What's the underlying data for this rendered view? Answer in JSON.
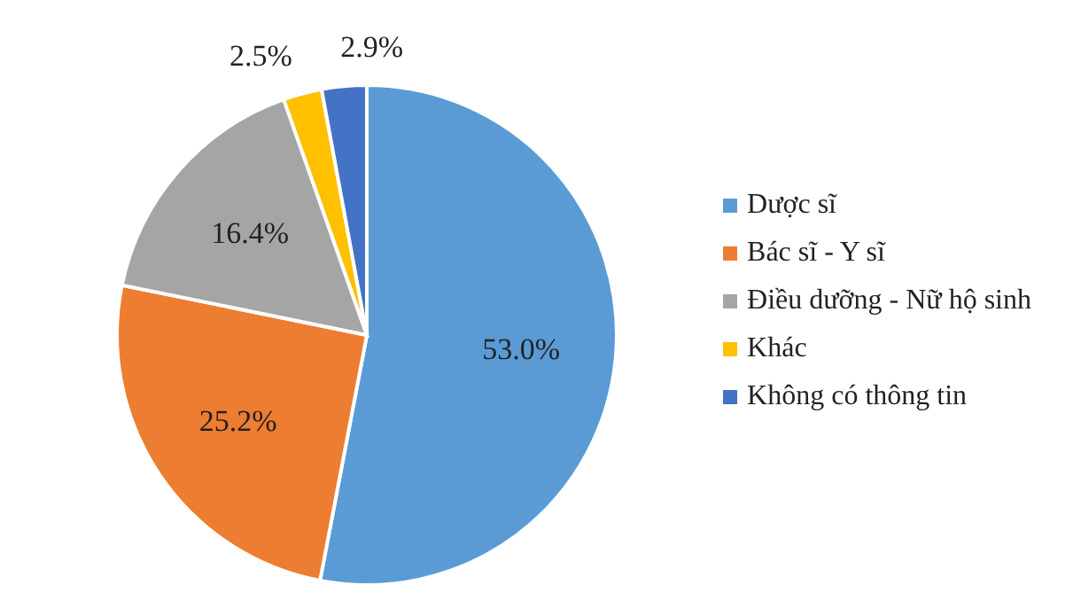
{
  "chart_data": {
    "type": "pie",
    "categories": [
      "Dược sĩ",
      "Bác sĩ - Y sĩ",
      "Điều dưỡng - Nữ hộ sinh",
      "Khác",
      "Không có thông tin"
    ],
    "values": [
      53.0,
      25.2,
      16.4,
      2.5,
      2.9
    ],
    "colors": [
      "#5b9bd5",
      "#ed7d31",
      "#a5a5a5",
      "#ffc000",
      "#4472c4"
    ],
    "value_labels": [
      "53.0%",
      "25.2%",
      "16.4%",
      "2.5%",
      "2.9%"
    ],
    "legend": "right"
  }
}
